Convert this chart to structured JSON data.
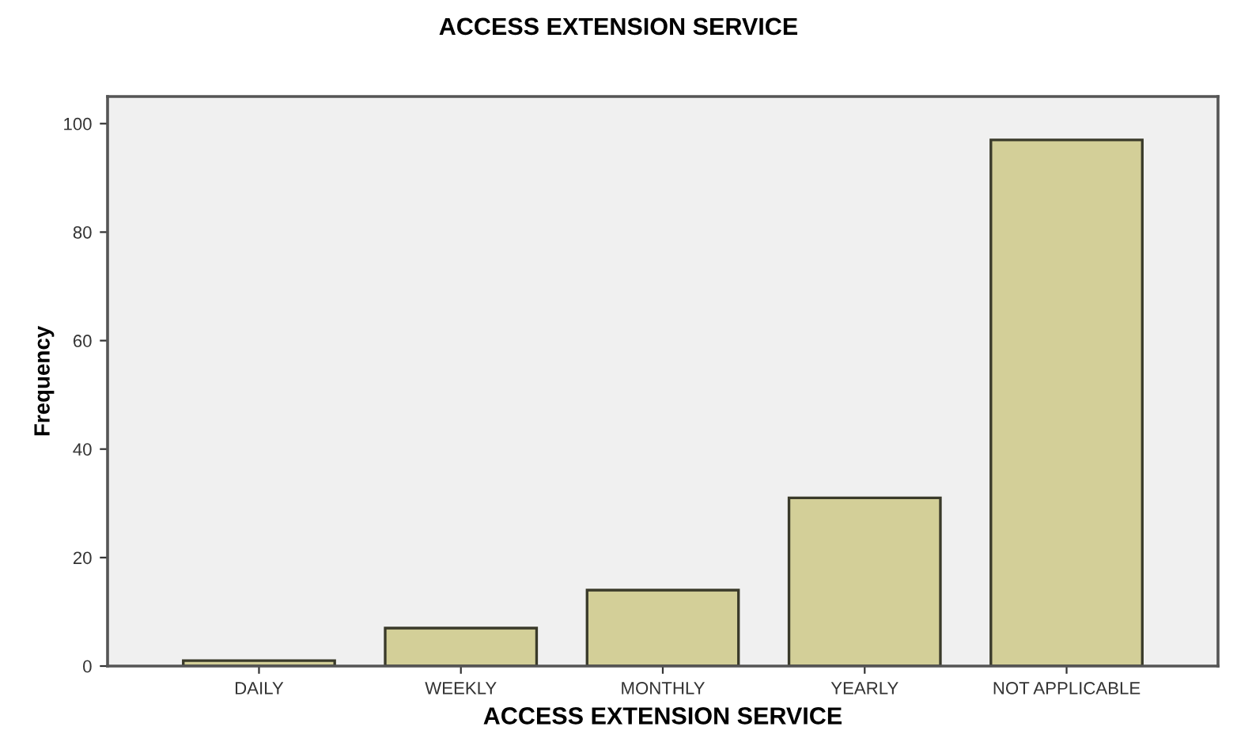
{
  "chart_data": {
    "type": "bar",
    "title": "ACCESS EXTENSION SERVICE",
    "xlabel": "ACCESS EXTENSION SERVICE",
    "ylabel": "Frequency",
    "categories": [
      "DAILY",
      "WEEKLY",
      "MONTHLY",
      "YEARLY",
      "NOT APPLICABLE"
    ],
    "values": [
      1,
      7,
      14,
      31,
      97
    ],
    "color": "#d3cf98",
    "ylim": [
      0,
      105
    ],
    "yticks": [
      0,
      20,
      40,
      60,
      80,
      100
    ],
    "grid": false
  }
}
